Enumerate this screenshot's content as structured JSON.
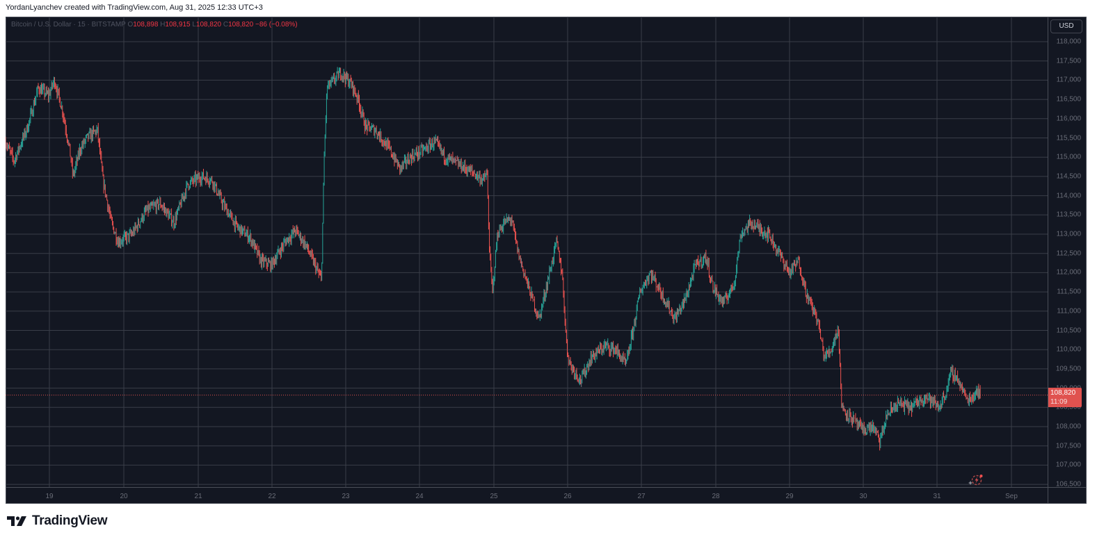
{
  "caption": "YordanLyanchev created with TradingView.com, Aug 31, 2025 12:33 UTC+3",
  "legend": {
    "symbol": "Bitcoin / U.S. Dollar · 15 · BITSTAMP",
    "o_label": "O",
    "open": "108,898",
    "h_label": "H",
    "high": "108,915",
    "l_label": "L",
    "low": "108,820",
    "c_label": "C",
    "close": "108,820",
    "change": "−86 (−0.08%)"
  },
  "currency_button": "USD",
  "last_price": {
    "price": "108,820",
    "countdown": "11:09"
  },
  "brand": {
    "name": "TradingView"
  },
  "colors": {
    "background": "#131722",
    "grid": "#3a3e48",
    "up": "#26a69a",
    "down": "#ef5350",
    "neutral": "#787b86",
    "last_price_bg": "#e0524f"
  },
  "chart_data": {
    "type": "candlestick",
    "title": "Bitcoin / U.S. Dollar · 15 · BITSTAMP",
    "xlabel": "",
    "ylabel": "USD",
    "interval": "15m",
    "ylim": [
      106400,
      118300
    ],
    "grid": true,
    "y_ticks": [
      "118,000",
      "117,500",
      "117,000",
      "116,500",
      "116,000",
      "115,500",
      "115,000",
      "114,500",
      "114,000",
      "113,500",
      "113,000",
      "112,500",
      "112,000",
      "111,500",
      "111,000",
      "110,500",
      "110,000",
      "109,500",
      "109,000",
      "108,500",
      "108,000",
      "107,500",
      "107,000",
      "106,500"
    ],
    "x_ticks": [
      "19",
      "20",
      "21",
      "22",
      "23",
      "24",
      "25",
      "26",
      "27",
      "28",
      "29",
      "30",
      "31",
      "Sep"
    ],
    "last_close": 108820,
    "ohlc_last": {
      "open": 108898,
      "high": 108915,
      "low": 108820,
      "close": 108820,
      "change": -86,
      "change_pct": -0.08
    },
    "price_path": [
      [
        "Aug 18 late",
        115400
      ],
      [
        "Aug 19 00:00",
        116600
      ],
      [
        "Aug 19 02:00",
        117000
      ],
      [
        "Aug 19 08:00",
        114500
      ],
      [
        "Aug 19 16:00",
        115700
      ],
      [
        "Aug 19 20:00",
        113300
      ],
      [
        "Aug 20 00:00",
        112800
      ],
      [
        "Aug 20 12:00",
        113800
      ],
      [
        "Aug 21 00:00",
        114400
      ],
      [
        "Aug 21 06:00",
        114500
      ],
      [
        "Aug 21 18:00",
        112900
      ],
      [
        "Aug 22 00:00",
        112200
      ],
      [
        "Aug 22 08:00",
        113100
      ],
      [
        "Aug 22 16:00",
        111800
      ],
      [
        "Aug 22 18:00",
        116800
      ],
      [
        "Aug 23 00:00",
        117200
      ],
      [
        "Aug 23 08:00",
        115800
      ],
      [
        "Aug 23 20:00",
        114700
      ],
      [
        "Aug 24 06:00",
        115400
      ],
      [
        "Aug 24 22:00",
        114400
      ],
      [
        "Aug 25 00:00",
        111500
      ],
      [
        "Aug 25 06:00",
        113400
      ],
      [
        "Aug 25 18:00",
        110800
      ],
      [
        "Aug 25 22:00",
        112800
      ],
      [
        "Aug 26 02:00",
        109600
      ],
      [
        "Aug 26 06:00",
        109200
      ],
      [
        "Aug 26 14:00",
        110100
      ],
      [
        "Aug 26 20:00",
        109600
      ],
      [
        "Aug 27 06:00",
        112000
      ],
      [
        "Aug 27 12:00",
        110800
      ],
      [
        "Aug 27 22:00",
        112400
      ],
      [
        "Aug 28 06:00",
        111200
      ],
      [
        "Aug 28 14:00",
        113300
      ],
      [
        "Aug 28 22:00",
        113000
      ],
      [
        "Aug 29 06:00",
        112300
      ],
      [
        "Aug 29 16:00",
        109800
      ],
      [
        "Aug 29 20:00",
        110600
      ],
      [
        "Aug 29 22:00",
        108500
      ],
      [
        "Aug 30 06:00",
        107900
      ],
      [
        "Aug 30 12:00",
        107600
      ],
      [
        "Aug 30 20:00",
        108600
      ],
      [
        "Aug 31 00:00",
        108500
      ],
      [
        "Aug 31 04:00",
        109400
      ],
      [
        "Aug 31 10:00",
        108700
      ],
      [
        "Aug 31 12:30",
        108820
      ]
    ],
    "annotations": [
      "last price label 108,820 with candle countdown 11:09"
    ]
  }
}
